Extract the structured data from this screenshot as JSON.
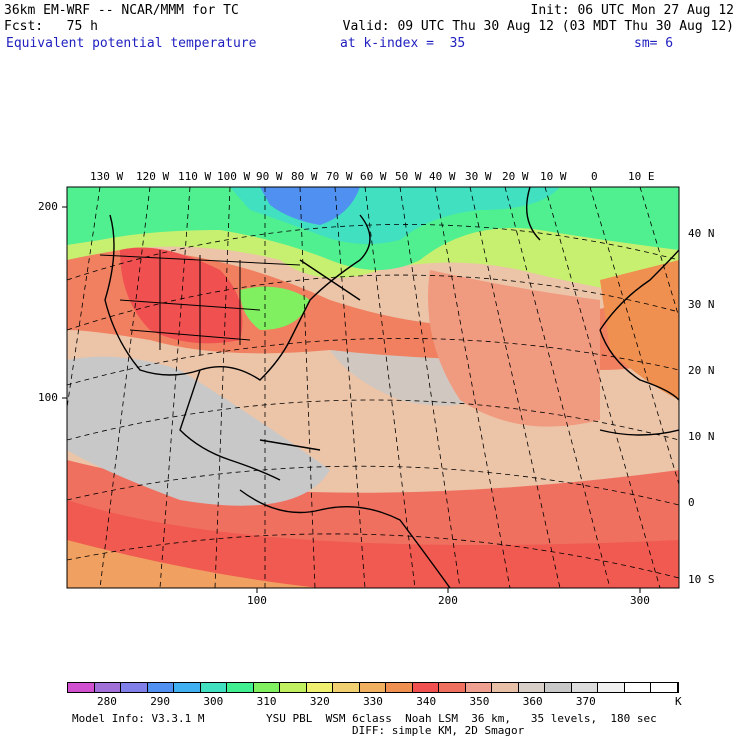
{
  "header": {
    "model": "36km EM-WRF -- NCAR/MMM for TC",
    "init": "Init: 06 UTC Mon 27 Aug 12",
    "fcst": "Fcst:   75 h",
    "valid": "Valid: 09 UTC Thu 30 Aug 12 (03 MDT Thu 30 Aug 12)",
    "field": "Equivalent potential temperature",
    "level": "at k-index =  35",
    "smooth": "sm= 6"
  },
  "map": {
    "lon_labels": [
      "130 W",
      "120 W",
      "110 W",
      "100 W",
      "90 W",
      "80 W",
      "70 W",
      "60 W",
      "50 W",
      "40 W",
      "30 W",
      "20 W",
      "10 W",
      "0",
      "10 E"
    ],
    "lat_labels": [
      "40 N",
      "30 N",
      "20 N",
      "10 N",
      "0",
      "10 S"
    ],
    "grid_y_labels": [
      "200",
      "100"
    ],
    "grid_x_labels": [
      "100",
      "200",
      "300"
    ]
  },
  "colorbar": {
    "labels": [
      "280",
      "290",
      "300",
      "310",
      "320",
      "330",
      "340",
      "350",
      "360",
      "370"
    ],
    "unit": "K",
    "colors": [
      "#d050d0",
      "#a070d8",
      "#8080e8",
      "#5090f0",
      "#40b0f0",
      "#40e0c0",
      "#40f090",
      "#80f060",
      "#c0f060",
      "#f0f070",
      "#f0d070",
      "#f0b060",
      "#f09050",
      "#f05050",
      "#f07060",
      "#f0a090",
      "#e8c0a8",
      "#d8d0c8",
      "#c8c8c8",
      "#dcdcdc",
      "#f0f0f0",
      "#ffffff",
      "#ffffff"
    ]
  },
  "footer": {
    "line1_left": "Model Info: V3.3.1 M",
    "line1_right": "YSU PBL  WSM 6class  Noah LSM  36 km,   35 levels,  180 sec",
    "line2": "DIFF: simple KM, 2D Smagor"
  }
}
